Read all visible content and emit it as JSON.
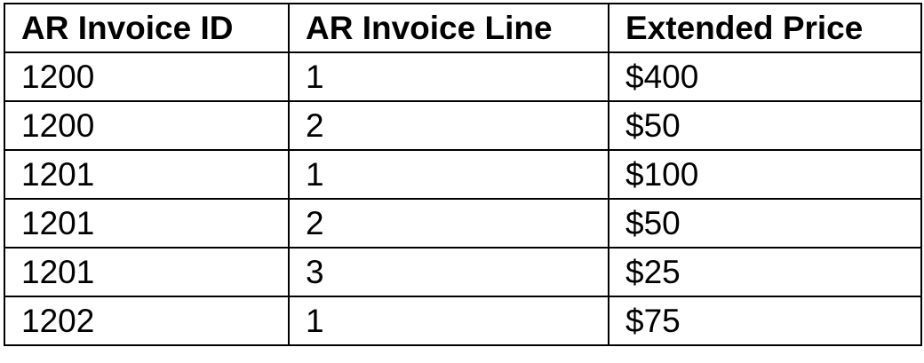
{
  "table": {
    "headers": [
      "AR Invoice ID",
      "AR Invoice Line",
      "Extended Price"
    ],
    "rows": [
      [
        "1200",
        "1",
        "$400"
      ],
      [
        "1200",
        "2",
        "$50"
      ],
      [
        "1201",
        "1",
        "$100"
      ],
      [
        "1201",
        "2",
        "$50"
      ],
      [
        "1201",
        "3",
        "$25"
      ],
      [
        "1202",
        "1",
        "$75"
      ]
    ]
  }
}
